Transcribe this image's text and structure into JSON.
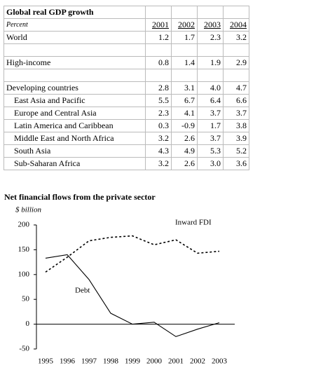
{
  "table": {
    "title": "Global real GDP growth",
    "header": [
      "Percent",
      "2001",
      "2002",
      "2003",
      "2004"
    ],
    "groups": [
      [
        {
          "label": "World",
          "values": [
            "1.2",
            "1.7",
            "2.3",
            "3.2"
          ]
        }
      ],
      [
        {
          "label": "High-income",
          "values": [
            "0.8",
            "1.4",
            "1.9",
            "2.9"
          ]
        }
      ],
      [
        {
          "label": "Developing countries",
          "values": [
            "2.8",
            "3.1",
            "4.0",
            "4.7"
          ]
        },
        {
          "label": "East Asia and Pacific",
          "values": [
            "5.5",
            "6.7",
            "6.4",
            "6.6"
          ]
        },
        {
          "label": "Europe and Central Asia",
          "values": [
            "2.3",
            "4.1",
            "3.7",
            "3.7"
          ]
        },
        {
          "label": "Latin America and Caribbean",
          "values": [
            "0.3",
            "-0.9",
            "1.7",
            "3.8"
          ]
        },
        {
          "label": "Middle East and North Africa",
          "values": [
            "3.2",
            "2.6",
            "3.7",
            "3.9"
          ]
        },
        {
          "label": "South Asia",
          "values": [
            "4.3",
            "4.9",
            "5.3",
            "5.2"
          ]
        },
        {
          "label": "Sub-Saharan Africa",
          "values": [
            "3.2",
            "2.6",
            "3.0",
            "3.6"
          ]
        }
      ]
    ]
  },
  "chart_data": {
    "type": "line",
    "title": "Net financial flows from the private sector",
    "subtitle": "$ billion",
    "categories": [
      "1995",
      "1996",
      "1997",
      "1998",
      "1999",
      "2000",
      "2001",
      "2002",
      "2003"
    ],
    "series": [
      {
        "name": "Inward FDI",
        "color": "#000000",
        "dash": true,
        "values": [
          105,
          135,
          168,
          175,
          178,
          160,
          170,
          143,
          147
        ]
      },
      {
        "name": "Debt",
        "color": "#000000",
        "dash": false,
        "values": [
          133,
          140,
          90,
          22,
          0,
          4,
          -25,
          -10,
          3
        ]
      }
    ],
    "ylim": [
      -50,
      200
    ],
    "yticks": [
      -50,
      0,
      50,
      100,
      150,
      200
    ]
  }
}
